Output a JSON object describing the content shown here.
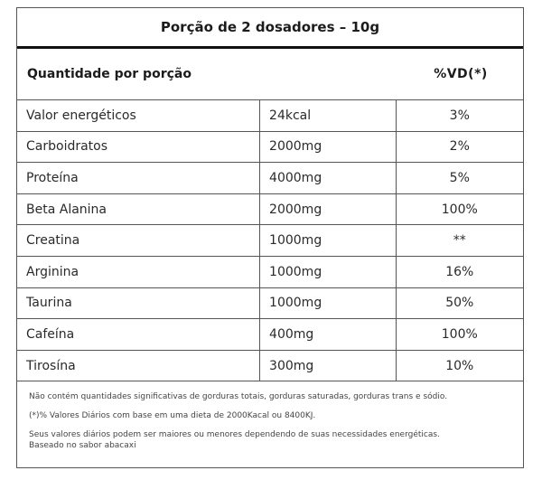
{
  "label": {
    "title": "Porção de 2 dosadores – 10g",
    "header": {
      "quantity_label": "Quantidade por porção",
      "vd_label": "%VD(*)"
    },
    "rows": [
      {
        "name": "Valor energéticos",
        "amount": "24kcal",
        "vd": "3%"
      },
      {
        "name": "Carboidratos",
        "amount": "2000mg",
        "vd": "2%"
      },
      {
        "name": "Proteína",
        "amount": "4000mg",
        "vd": "5%"
      },
      {
        "name": "Beta Alanina",
        "amount": "2000mg",
        "vd": "100%"
      },
      {
        "name": "Creatina",
        "amount": "1000mg",
        "vd": "**"
      },
      {
        "name": "Arginina",
        "amount": "1000mg",
        "vd": "16%"
      },
      {
        "name": "Taurina",
        "amount": "1000mg",
        "vd": "50%"
      },
      {
        "name": "Cafeína",
        "amount": "400mg",
        "vd": "100%"
      },
      {
        "name": "Tirosína",
        "amount": "300mg",
        "vd": "10%"
      }
    ],
    "footnotes": {
      "no_significant": "Não contém quantidades significativas de gorduras totais, gorduras saturadas, gorduras trans e sódio.",
      "daily_values": "(*)% Valores Diários com base em uma dieta de 2000Kacal ou 8400KJ.",
      "may_vary": "Seus valores diários podem ser maiores ou menores dependendo de suas necessidades energéticas.",
      "flavor": "Baseado no sabor abacaxi"
    }
  }
}
